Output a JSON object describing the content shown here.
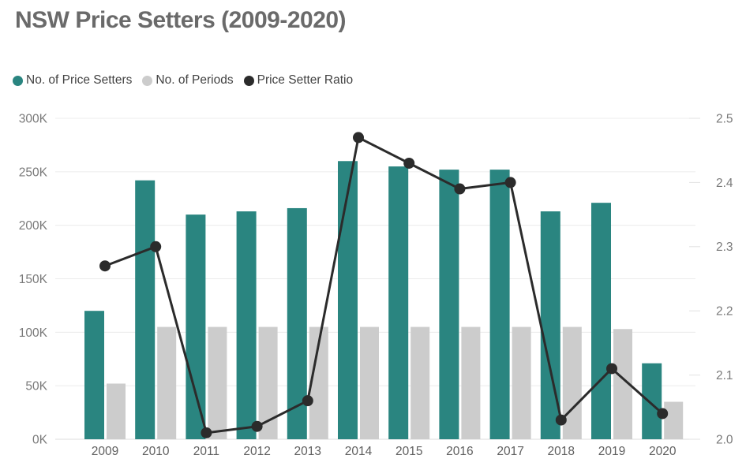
{
  "title": "NSW Price Setters (2009-2020)",
  "legend": [
    {
      "label": "No. of Price Setters",
      "color": "#2a8580"
    },
    {
      "label": "No. of Periods",
      "color": "#cccccc"
    },
    {
      "label": "Price Setter Ratio",
      "color": "#2b2b2b"
    }
  ],
  "chart_data": {
    "type": "combo",
    "title": "NSW Price Setters (2009-2020)",
    "categories": [
      "2009",
      "2010",
      "2011",
      "2012",
      "2013",
      "2014",
      "2015",
      "2016",
      "2017",
      "2018",
      "2019",
      "2020"
    ],
    "series": [
      {
        "name": "No. of Price Setters",
        "type": "bar",
        "axis": "left",
        "color": "#2a8580",
        "values": [
          120000,
          242000,
          210000,
          213000,
          216000,
          260000,
          255000,
          252000,
          252000,
          213000,
          221000,
          71000
        ]
      },
      {
        "name": "No. of Periods",
        "type": "bar",
        "axis": "left",
        "color": "#cccccc",
        "values": [
          52000,
          105000,
          105000,
          105000,
          105000,
          105000,
          105000,
          105000,
          105000,
          105000,
          103000,
          35000
        ]
      },
      {
        "name": "Price Setter Ratio",
        "type": "line",
        "axis": "right",
        "color": "#2b2b2b",
        "values": [
          2.27,
          2.3,
          2.01,
          2.02,
          2.06,
          2.47,
          2.43,
          2.39,
          2.4,
          2.03,
          2.11,
          2.04
        ]
      }
    ],
    "left_axis": {
      "ticks": [
        "300K",
        "250K",
        "200K",
        "150K",
        "100K",
        "50K",
        "0K"
      ],
      "min": 0,
      "max": 300000
    },
    "right_axis": {
      "ticks": [
        "2.5",
        "2.4",
        "2.3",
        "2.2",
        "2.1",
        "2.0"
      ],
      "min": 2.0,
      "max": 2.5
    },
    "grid": true,
    "legend_position": "top-left"
  }
}
